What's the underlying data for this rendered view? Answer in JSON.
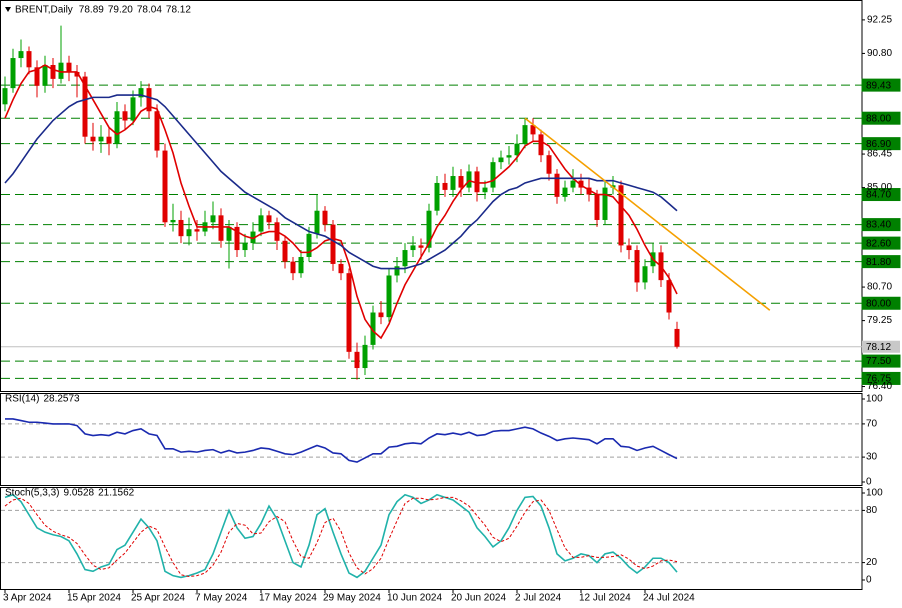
{
  "chart_data": [
    {
      "type": "candlestick",
      "symbol": "BRENT,Daily",
      "ohlc_labels": [
        "78.89",
        "79.20",
        "78.04",
        "78.12"
      ],
      "categories": [
        "3 Apr 2024",
        null,
        null,
        null,
        null,
        null,
        null,
        null,
        "15 Apr 2024",
        null,
        null,
        null,
        null,
        null,
        null,
        null,
        "25 Apr 2024",
        null,
        null,
        null,
        null,
        null,
        null,
        null,
        "7 May 2024",
        null,
        null,
        null,
        null,
        null,
        null,
        null,
        "17 May 2024",
        null,
        null,
        null,
        null,
        null,
        null,
        null,
        "29 May 2024",
        null,
        null,
        null,
        null,
        null,
        null,
        null,
        "10 Jun 2024",
        null,
        null,
        null,
        null,
        null,
        null,
        null,
        "20 Jun 2024",
        null,
        null,
        null,
        null,
        null,
        null,
        null,
        "2 Jul 2024",
        null,
        null,
        null,
        null,
        null,
        null,
        null,
        "12 Jul 2024",
        null,
        null,
        null,
        null,
        null,
        null,
        null,
        "24 Jul 2024",
        null,
        null,
        null,
        null
      ],
      "up_color": "#00a000",
      "down_color": "#e00000",
      "candles": [
        [
          88.6,
          89.8,
          88.3,
          89.3
        ],
        [
          89.3,
          91.0,
          89.1,
          90.6
        ],
        [
          90.6,
          91.4,
          90.2,
          90.9
        ],
        [
          90.9,
          91.1,
          89.9,
          90.2
        ],
        [
          90.2,
          90.5,
          88.9,
          89.4
        ],
        [
          89.4,
          90.7,
          89.1,
          90.3
        ],
        [
          90.3,
          90.6,
          89.3,
          89.7
        ],
        [
          89.7,
          92.0,
          89.5,
          90.4
        ],
        [
          90.4,
          90.7,
          89.6,
          90.0
        ],
        [
          90.0,
          90.3,
          88.9,
          89.8
        ],
        [
          89.8,
          90.0,
          86.9,
          87.2
        ],
        [
          87.2,
          87.8,
          86.6,
          87.0
        ],
        [
          87.0,
          87.7,
          86.5,
          87.2
        ],
        [
          87.2,
          87.6,
          86.4,
          86.9
        ],
        [
          86.9,
          88.7,
          86.7,
          88.3
        ],
        [
          88.3,
          88.6,
          87.5,
          87.9
        ],
        [
          87.9,
          89.2,
          87.7,
          88.9
        ],
        [
          88.9,
          89.6,
          88.5,
          89.3
        ],
        [
          89.3,
          89.5,
          88.0,
          88.3
        ],
        [
          88.3,
          88.6,
          86.3,
          86.6
        ],
        [
          86.6,
          86.9,
          83.3,
          83.5
        ],
        [
          83.5,
          84.3,
          83.1,
          83.6
        ],
        [
          83.6,
          84.0,
          82.6,
          82.9
        ],
        [
          82.9,
          83.7,
          82.5,
          83.2
        ],
        [
          83.2,
          83.6,
          82.7,
          83.1
        ],
        [
          83.1,
          84.0,
          82.9,
          83.5
        ],
        [
          83.5,
          84.4,
          83.2,
          83.8
        ],
        [
          83.8,
          84.1,
          82.4,
          82.7
        ],
        [
          82.7,
          83.6,
          81.5,
          83.3
        ],
        [
          83.3,
          83.5,
          82.0,
          82.3
        ],
        [
          82.3,
          83.0,
          82.0,
          82.6
        ],
        [
          82.6,
          83.5,
          82.3,
          83.1
        ],
        [
          83.1,
          84.1,
          82.9,
          83.8
        ],
        [
          83.8,
          84.0,
          83.2,
          83.5
        ],
        [
          83.5,
          83.7,
          82.3,
          82.7
        ],
        [
          82.7,
          82.9,
          81.5,
          81.8
        ],
        [
          81.8,
          82.0,
          81.0,
          81.3
        ],
        [
          81.3,
          82.3,
          81.1,
          82.0
        ],
        [
          82.0,
          83.3,
          81.8,
          83.0
        ],
        [
          83.0,
          84.7,
          82.8,
          84.0
        ],
        [
          84.0,
          84.2,
          83.1,
          83.4
        ],
        [
          83.4,
          83.6,
          81.4,
          81.7
        ],
        [
          81.7,
          81.9,
          81.0,
          81.3
        ],
        [
          81.3,
          81.5,
          77.6,
          77.9
        ],
        [
          77.9,
          78.3,
          76.7,
          77.2
        ],
        [
          77.2,
          78.6,
          76.9,
          78.2
        ],
        [
          78.2,
          79.9,
          78.0,
          79.6
        ],
        [
          79.6,
          80.1,
          79.1,
          79.4
        ],
        [
          79.4,
          81.5,
          79.2,
          81.2
        ],
        [
          81.2,
          82.0,
          80.9,
          81.6
        ],
        [
          81.6,
          82.6,
          81.3,
          82.3
        ],
        [
          82.3,
          82.9,
          82.0,
          82.5
        ],
        [
          82.5,
          82.8,
          81.9,
          82.4
        ],
        [
          82.4,
          84.3,
          82.2,
          84.0
        ],
        [
          84.0,
          85.5,
          83.8,
          85.2
        ],
        [
          85.2,
          85.6,
          84.6,
          84.9
        ],
        [
          84.9,
          85.9,
          84.6,
          85.5
        ],
        [
          85.5,
          85.8,
          84.6,
          85.0
        ],
        [
          85.0,
          86.0,
          84.8,
          85.7
        ],
        [
          85.7,
          85.9,
          84.4,
          84.8
        ],
        [
          84.8,
          85.3,
          84.5,
          85.0
        ],
        [
          85.0,
          86.3,
          84.8,
          86.1
        ],
        [
          86.1,
          86.6,
          85.8,
          86.3
        ],
        [
          86.3,
          86.8,
          86.0,
          86.4
        ],
        [
          86.4,
          87.3,
          86.1,
          86.9
        ],
        [
          86.9,
          88.0,
          86.7,
          87.7
        ],
        [
          87.7,
          88.0,
          87.0,
          87.3
        ],
        [
          87.3,
          87.5,
          86.1,
          86.4
        ],
        [
          86.4,
          86.6,
          85.3,
          85.6
        ],
        [
          85.6,
          85.8,
          84.3,
          84.6
        ],
        [
          84.6,
          85.3,
          84.4,
          85.0
        ],
        [
          85.0,
          85.8,
          84.8,
          85.3
        ],
        [
          85.3,
          85.6,
          84.7,
          85.0
        ],
        [
          85.0,
          85.4,
          84.4,
          84.7
        ],
        [
          84.7,
          84.9,
          83.3,
          83.6
        ],
        [
          83.6,
          85.3,
          83.4,
          85.0
        ],
        [
          85.0,
          85.5,
          84.7,
          85.1
        ],
        [
          85.1,
          85.3,
          82.2,
          82.5
        ],
        [
          82.5,
          82.8,
          81.9,
          82.3
        ],
        [
          82.3,
          82.5,
          80.5,
          80.9
        ],
        [
          80.9,
          81.9,
          80.6,
          81.6
        ],
        [
          81.6,
          82.6,
          81.3,
          82.2
        ],
        [
          82.2,
          82.5,
          80.7,
          81.0
        ],
        [
          81.0,
          81.3,
          79.3,
          79.6
        ],
        [
          78.89,
          79.2,
          78.04,
          78.12
        ]
      ],
      "lines": [
        {
          "color": "#e00000",
          "values": [
            88.0,
            88.8,
            89.5,
            90.0,
            90.1,
            90.3,
            90.1,
            90.0,
            90.0,
            90.0,
            89.4,
            88.8,
            88.2,
            87.6,
            87.3,
            87.5,
            87.8,
            88.3,
            88.5,
            88.4,
            87.5,
            86.5,
            85.2,
            84.2,
            83.3,
            83.3,
            83.3,
            83.3,
            83.3,
            83.1,
            82.9,
            82.8,
            83.0,
            83.1,
            83.1,
            82.9,
            82.6,
            82.2,
            82.2,
            82.4,
            82.7,
            82.8,
            82.7,
            81.7,
            80.3,
            79.3,
            78.8,
            78.5,
            79.1,
            80.0,
            80.8,
            81.4,
            82.0,
            82.6,
            83.3,
            83.8,
            84.4,
            84.9,
            85.3,
            85.2,
            85.2,
            85.3,
            85.6,
            85.9,
            86.3,
            86.8,
            87.0,
            87.0,
            86.8,
            86.3,
            85.8,
            85.4,
            85.1,
            84.9,
            84.7,
            84.7,
            84.6,
            84.2,
            83.8,
            83.2,
            82.5,
            81.9,
            81.6,
            81.1,
            80.4
          ]
        },
        {
          "color": "#1a2a8a",
          "values": [
            85.2,
            85.6,
            86.1,
            86.6,
            87.1,
            87.5,
            87.9,
            88.2,
            88.5,
            88.7,
            88.8,
            88.9,
            88.9,
            88.9,
            89.0,
            89.0,
            89.0,
            89.0,
            88.9,
            88.8,
            88.5,
            88.1,
            87.7,
            87.3,
            86.9,
            86.5,
            86.1,
            85.7,
            85.4,
            85.1,
            84.8,
            84.6,
            84.4,
            84.2,
            84.0,
            83.7,
            83.5,
            83.3,
            83.1,
            83.0,
            82.9,
            82.7,
            82.5,
            82.2,
            82.0,
            81.8,
            81.6,
            81.5,
            81.5,
            81.5,
            81.5,
            81.6,
            81.7,
            81.9,
            82.1,
            82.3,
            82.6,
            82.9,
            83.3,
            83.6,
            84.0,
            84.4,
            84.7,
            84.9,
            85.0,
            85.2,
            85.3,
            85.4,
            85.4,
            85.4,
            85.4,
            85.4,
            85.4,
            85.4,
            85.3,
            85.3,
            85.3,
            85.2,
            85.1,
            85.0,
            84.9,
            84.8,
            84.6,
            84.3,
            84.0
          ]
        }
      ],
      "trendline": {
        "color": "#f5a000",
        "x": [
          65,
          95.6
        ],
        "y": [
          88.0,
          79.7
        ]
      },
      "ylim": [
        76.25,
        92.98
      ],
      "yticks": [
        92.25,
        {
          "value": 90.8,
          "label": "90.80"
        },
        86.45,
        {
          "value": 85,
          "label": "85.00"
        },
        {
          "value": 80.7,
          "label": "80.70"
        },
        79.25,
        {
          "value": 76.4,
          "label": "76.40"
        }
      ],
      "level_color": "#008000",
      "levels": [
        89.43,
        {
          "value": 88,
          "label": "88.00"
        },
        {
          "value": 86.9,
          "label": "86.90"
        },
        {
          "value": 84.7,
          "label": "84.70"
        },
        {
          "value": 83.4,
          "label": "83.40"
        },
        {
          "value": 82.6,
          "label": "82.60"
        },
        {
          "value": 81.8,
          "label": "81.80"
        },
        {
          "value": 80,
          "label": "80.00"
        },
        {
          "value": 77.5,
          "label": "77.50"
        },
        76.75
      ],
      "last_price": 78.12
    },
    {
      "type": "line",
      "title": "RSI(14)",
      "series": [
        {
          "color": "#1a2ab0",
          "values": [
            76,
            76,
            74,
            72,
            72,
            71,
            70,
            70,
            70,
            68,
            58,
            56,
            57,
            56,
            60,
            58,
            62,
            64,
            58,
            56,
            40,
            40,
            36,
            37,
            36,
            38,
            39,
            35,
            38,
            35,
            36,
            38,
            41,
            40,
            37,
            34,
            33,
            36,
            40,
            44,
            41,
            35,
            34,
            26,
            24,
            29,
            34,
            34,
            42,
            43,
            46,
            47,
            46,
            53,
            58,
            57,
            59,
            57,
            60,
            56,
            57,
            61,
            62,
            62,
            64,
            66,
            64,
            59,
            55,
            50,
            52,
            53,
            52,
            51,
            46,
            52,
            52,
            43,
            42,
            38,
            41,
            43,
            38,
            33,
            28.2573
          ]
        }
      ],
      "ylim": [
        0,
        100
      ],
      "yticks": [
        100,
        70,
        30,
        0
      ]
    },
    {
      "type": "line",
      "title": "Stoch(5,3,3)",
      "series": [
        {
          "color": "#20b2aa",
          "dashed": false,
          "values": [
            95,
            98,
            90,
            75,
            60,
            55,
            52,
            50,
            45,
            30,
            12,
            10,
            15,
            18,
            35,
            40,
            55,
            70,
            60,
            45,
            10,
            5,
            3,
            5,
            8,
            12,
            30,
            55,
            80,
            60,
            48,
            50,
            65,
            85,
            70,
            45,
            20,
            15,
            40,
            75,
            82,
            55,
            30,
            8,
            3,
            10,
            25,
            40,
            75,
            90,
            98,
            95,
            88,
            92,
            98,
            95,
            92,
            85,
            78,
            60,
            50,
            38,
            45,
            60,
            80,
            95,
            96,
            85,
            60,
            30,
            22,
            25,
            30,
            28,
            20,
            30,
            32,
            25,
            15,
            8,
            15,
            25,
            25,
            20,
            9.0528
          ]
        },
        {
          "color": "#e00000",
          "dashed": true,
          "values": [
            85,
            92,
            94,
            88,
            75,
            63,
            56,
            52,
            49,
            42,
            29,
            17,
            12,
            14,
            23,
            31,
            43,
            55,
            62,
            58,
            38,
            20,
            6,
            4,
            5,
            8,
            17,
            32,
            55,
            65,
            63,
            53,
            54,
            67,
            73,
            67,
            45,
            27,
            25,
            43,
            66,
            71,
            56,
            31,
            14,
            7,
            13,
            25,
            47,
            68,
            88,
            94,
            94,
            92,
            93,
            95,
            95,
            91,
            85,
            74,
            63,
            49,
            44,
            48,
            62,
            78,
            90,
            92,
            80,
            58,
            37,
            26,
            26,
            28,
            26,
            26,
            27,
            29,
            24,
            16,
            13,
            16,
            22,
            23,
            21.1562
          ]
        }
      ],
      "ylim": [
        0,
        100
      ],
      "yticks": [
        100,
        80,
        20,
        0
      ]
    }
  ]
}
